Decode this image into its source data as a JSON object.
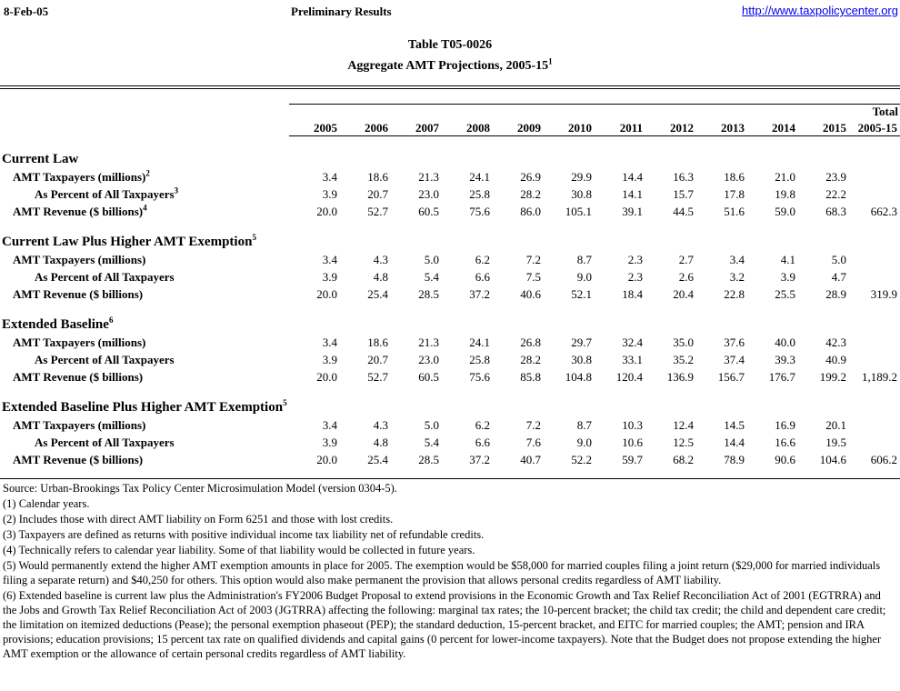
{
  "header": {
    "date": "8-Feb-05",
    "center": "Preliminary Results",
    "link": "http://www.taxpolicycenter.org"
  },
  "title": {
    "line1": "Table T05-0026",
    "line2": "Aggregate AMT Projections, 2005-15",
    "line2_sup": "1"
  },
  "table": {
    "total_label": "Total",
    "total_sub": "2005-15",
    "years": [
      "2005",
      "2006",
      "2007",
      "2008",
      "2009",
      "2010",
      "2011",
      "2012",
      "2013",
      "2014",
      "2015"
    ],
    "sections": [
      {
        "heading": "Current Law",
        "sup": "",
        "rows": [
          {
            "label": "AMT Taxpayers (millions)",
            "sup": "2",
            "indent": 1,
            "values": [
              "3.4",
              "18.6",
              "21.3",
              "24.1",
              "26.9",
              "29.9",
              "14.4",
              "16.3",
              "18.6",
              "21.0",
              "23.9"
            ],
            "total": ""
          },
          {
            "label": "As Percent of All Taxpayers",
            "sup": "3",
            "indent": 2,
            "values": [
              "3.9",
              "20.7",
              "23.0",
              "25.8",
              "28.2",
              "30.8",
              "14.1",
              "15.7",
              "17.8",
              "19.8",
              "22.2"
            ],
            "total": ""
          },
          {
            "label": "AMT Revenue ($ billions)",
            "sup": "4",
            "indent": 1,
            "values": [
              "20.0",
              "52.7",
              "60.5",
              "75.6",
              "86.0",
              "105.1",
              "39.1",
              "44.5",
              "51.6",
              "59.0",
              "68.3"
            ],
            "total": "662.3"
          }
        ]
      },
      {
        "heading": "Current Law Plus Higher AMT Exemption",
        "sup": "5",
        "rows": [
          {
            "label": "AMT Taxpayers (millions)",
            "sup": "",
            "indent": 1,
            "values": [
              "3.4",
              "4.3",
              "5.0",
              "6.2",
              "7.2",
              "8.7",
              "2.3",
              "2.7",
              "3.4",
              "4.1",
              "5.0"
            ],
            "total": ""
          },
          {
            "label": "As Percent of All Taxpayers",
            "sup": "",
            "indent": 2,
            "values": [
              "3.9",
              "4.8",
              "5.4",
              "6.6",
              "7.5",
              "9.0",
              "2.3",
              "2.6",
              "3.2",
              "3.9",
              "4.7"
            ],
            "total": ""
          },
          {
            "label": "AMT Revenue ($ billions)",
            "sup": "",
            "indent": 1,
            "values": [
              "20.0",
              "25.4",
              "28.5",
              "37.2",
              "40.6",
              "52.1",
              "18.4",
              "20.4",
              "22.8",
              "25.5",
              "28.9"
            ],
            "total": "319.9"
          }
        ]
      },
      {
        "heading": "Extended Baseline",
        "sup": "6",
        "rows": [
          {
            "label": "AMT Taxpayers (millions)",
            "sup": "",
            "indent": 1,
            "values": [
              "3.4",
              "18.6",
              "21.3",
              "24.1",
              "26.8",
              "29.7",
              "32.4",
              "35.0",
              "37.6",
              "40.0",
              "42.3"
            ],
            "total": ""
          },
          {
            "label": "As Percent of All Taxpayers",
            "sup": "",
            "indent": 2,
            "values": [
              "3.9",
              "20.7",
              "23.0",
              "25.8",
              "28.2",
              "30.8",
              "33.1",
              "35.2",
              "37.4",
              "39.3",
              "40.9"
            ],
            "total": ""
          },
          {
            "label": "AMT Revenue ($ billions)",
            "sup": "",
            "indent": 1,
            "values": [
              "20.0",
              "52.7",
              "60.5",
              "75.6",
              "85.8",
              "104.8",
              "120.4",
              "136.9",
              "156.7",
              "176.7",
              "199.2"
            ],
            "total": "1,189.2"
          }
        ]
      },
      {
        "heading": "Extended Baseline Plus Higher AMT Exemption",
        "sup": "5",
        "rows": [
          {
            "label": "AMT Taxpayers (millions)",
            "sup": "",
            "indent": 1,
            "values": [
              "3.4",
              "4.3",
              "5.0",
              "6.2",
              "7.2",
              "8.7",
              "10.3",
              "12.4",
              "14.5",
              "16.9",
              "20.1"
            ],
            "total": ""
          },
          {
            "label": "As Percent of All Taxpayers",
            "sup": "",
            "indent": 2,
            "values": [
              "3.9",
              "4.8",
              "5.4",
              "6.6",
              "7.6",
              "9.0",
              "10.6",
              "12.5",
              "14.4",
              "16.6",
              "19.5"
            ],
            "total": ""
          },
          {
            "label": "AMT Revenue ($ billions)",
            "sup": "",
            "indent": 1,
            "values": [
              "20.0",
              "25.4",
              "28.5",
              "37.2",
              "40.7",
              "52.2",
              "59.7",
              "68.2",
              "78.9",
              "90.6",
              "104.6"
            ],
            "total": "606.2"
          }
        ]
      }
    ]
  },
  "footnotes": [
    "Source: Urban-Brookings Tax Policy Center Microsimulation Model (version 0304-5).",
    "(1) Calendar years.",
    "(2) Includes those with direct AMT liability on Form 6251 and those with lost credits.",
    "(3) Taxpayers are defined as returns with positive individual income tax liability net of refundable credits.",
    "(4) Technically refers to calendar year liability.  Some of that liability would be collected in future years.",
    "(5) Would permanently extend the higher AMT exemption amounts in place for 2005.  The exemption would be $58,000 for married couples filing a joint return ($29,000 for married individuals filing a separate return) and $40,250 for others.  This option would also make permanent the provision that allows personal credits regardless of AMT liability.",
    "(6) Extended baseline is current law plus the Administration's FY2006 Budget Proposal to extend provisions in the Economic Growth and Tax Relief Reconciliation Act of 2001 (EGTRRA) and the Jobs and Growth Tax Relief Reconciliation Act of 2003 (JGTRRA) affecting the following: marginal tax rates; the 10-percent bracket; the child tax credit; the child and dependent care credit; the limitation on itemized deductions (Pease); the personal exemption phaseout (PEP); the standard deduction, 15-percent bracket, and EITC for married couples; the AMT; pension and IRA provisions; education provisions; 15 percent tax rate on qualified dividends and capital gains (0 percent for lower-income taxpayers). Note that the Budget does not propose extending the higher AMT exemption or the allowance of certain personal credits regardless of AMT liability."
  ]
}
